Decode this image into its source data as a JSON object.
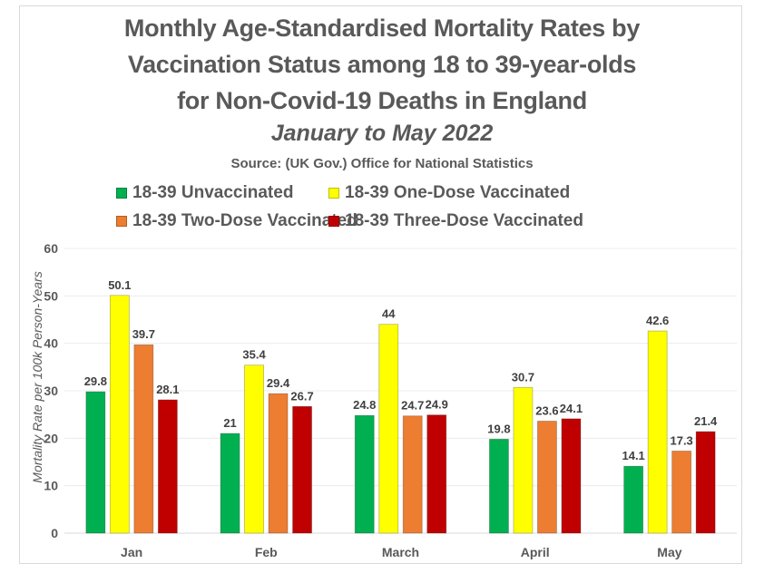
{
  "chart_data": {
    "type": "bar",
    "title_lines": [
      "Monthly Age-Standardised Mortality Rates by",
      "Vaccination Status among 18 to 39-year-olds",
      "for Non-Covid-19 Deaths in England"
    ],
    "subtitle": "January to May 2022",
    "source": "Source: (UK Gov.) Office for National Statistics",
    "xlabel": "",
    "ylabel": "Mortality Rate per 100k Person-Years",
    "ylim": [
      0,
      60
    ],
    "yticks": [
      0,
      10,
      20,
      30,
      40,
      50,
      60
    ],
    "grid": true,
    "legend_position": "top",
    "categories": [
      "Jan",
      "Feb",
      "March",
      "April",
      "May"
    ],
    "series": [
      {
        "name": "18-39 Unvaccinated",
        "color": "#00B050",
        "values": [
          29.8,
          21,
          24.8,
          19.8,
          14.1
        ],
        "labels": [
          "29.8",
          "21",
          "24.8",
          "19.8",
          "14.1"
        ]
      },
      {
        "name": "18-39 One-Dose Vaccinated",
        "color": "#FFFF00",
        "values": [
          50.1,
          35.4,
          44,
          30.7,
          42.6
        ],
        "labels": [
          "50.1",
          "35.4",
          "44",
          "30.7",
          "42.6"
        ]
      },
      {
        "name": "18-39 Two-Dose Vaccinated",
        "color": "#ED7D31",
        "values": [
          39.7,
          29.4,
          24.7,
          23.6,
          17.3
        ],
        "labels": [
          "39.7",
          "29.4",
          "24.7",
          "23.6",
          "17.3"
        ]
      },
      {
        "name": "18-39 Three-Dose Vaccinated",
        "color": "#C00000",
        "values": [
          28.1,
          26.7,
          24.9,
          24.1,
          21.4
        ],
        "labels": [
          "28.1",
          "26.7",
          "24.9",
          "24.1",
          "21.4"
        ]
      }
    ]
  }
}
